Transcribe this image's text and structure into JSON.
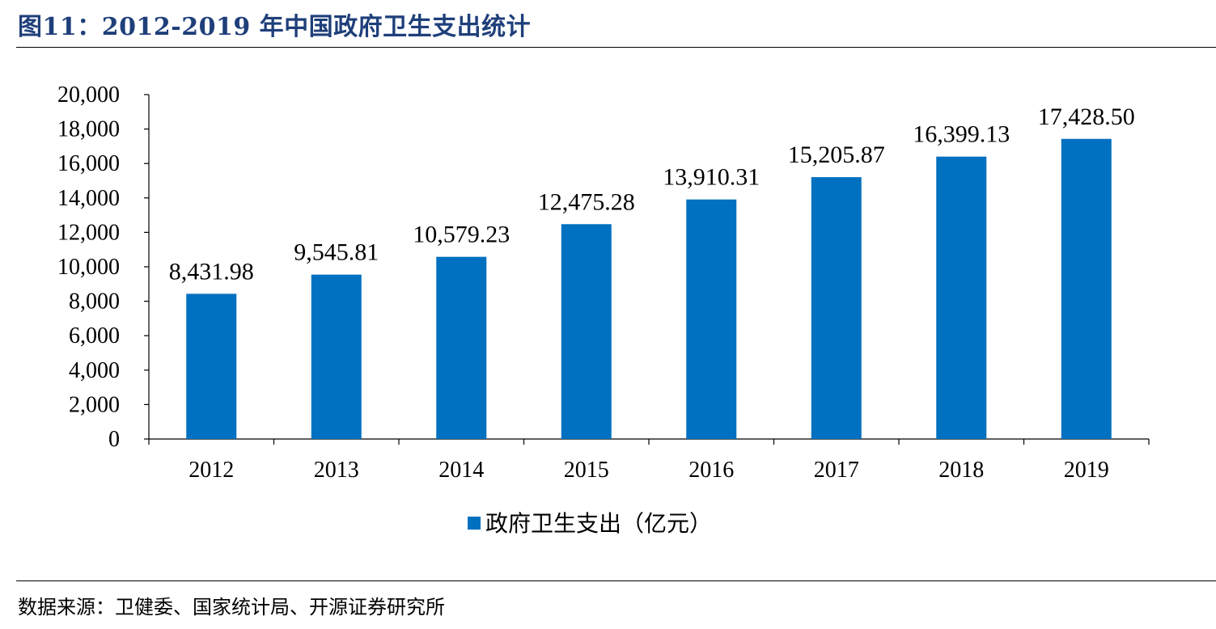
{
  "figure_title": "图11：2012-2019 年中国政府卫生支出统计",
  "source": "数据来源：卫健委、国家统计局、开源证券研究所",
  "colors": {
    "bar": "#0070c0",
    "title": "#1f3f7a"
  },
  "chart_data": {
    "type": "bar",
    "categories": [
      "2012",
      "2013",
      "2014",
      "2015",
      "2016",
      "2017",
      "2018",
      "2019"
    ],
    "series": [
      {
        "name": "政府卫生支出（亿元）",
        "values": [
          8431.98,
          9545.81,
          10579.23,
          12475.28,
          13910.31,
          15205.87,
          16399.13,
          17428.5
        ],
        "labels": [
          "8,431.98",
          "9,545.81",
          "10,579.23",
          "12,475.28",
          "13,910.31",
          "15,205.87",
          "16,399.13",
          "17,428.50"
        ]
      }
    ],
    "ylim": [
      0,
      20000
    ],
    "yticks": [
      0,
      2000,
      4000,
      6000,
      8000,
      10000,
      12000,
      14000,
      16000,
      18000,
      20000
    ],
    "ytick_labels": [
      "0",
      "2,000",
      "4,000",
      "6,000",
      "8,000",
      "10,000",
      "12,000",
      "14,000",
      "16,000",
      "18,000",
      "20,000"
    ],
    "xlabel": "",
    "ylabel": "",
    "grid": false,
    "legend": "bottom-center"
  }
}
